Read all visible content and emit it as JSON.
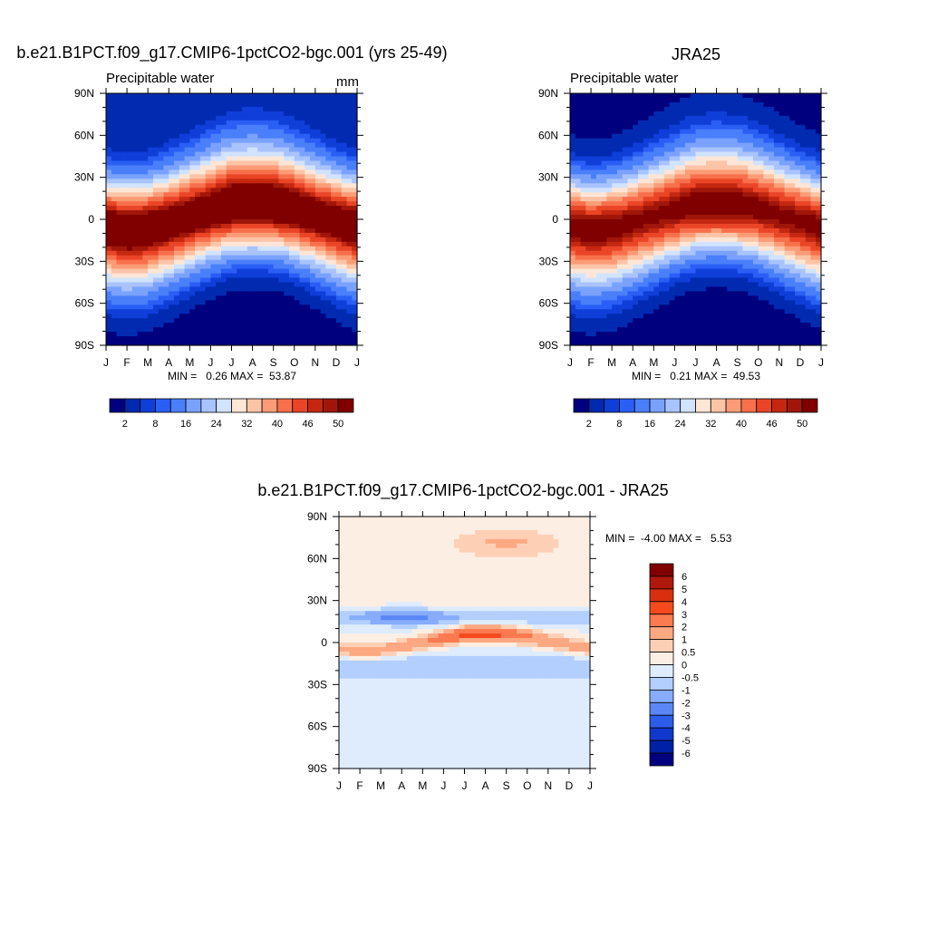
{
  "chart_data": [
    {
      "id": "model",
      "type": "heatmap",
      "title": "b.e21.B1PCT.f09_g17.CMIP6-1pctCO2-bgc.001 (yrs 25-49)",
      "subtitle_left": "Precipitable water",
      "subtitle_right": "mm",
      "x_tick_labels": [
        "J",
        "F",
        "M",
        "A",
        "M",
        "J",
        "J",
        "A",
        "S",
        "O",
        "N",
        "D",
        "J"
      ],
      "y_tick_labels": [
        "90S",
        "60S",
        "30S",
        "0",
        "30N",
        "60N",
        "90N"
      ],
      "y_range": [
        -90,
        90
      ],
      "stats_text": "MIN =   0.26 MAX =  53.87",
      "min": 0.26,
      "max": 53.87,
      "field": {
        "polar_north": 2,
        "polar_south": 1,
        "tropical_peak": 53,
        "itcz_lat": [
          -3,
          -5,
          -4,
          -1,
          2,
          5,
          8,
          8,
          8,
          6,
          3,
          0,
          -3
        ]
      },
      "colorbar": {
        "orientation": "horizontal",
        "levels": [
          2,
          4,
          6,
          8,
          12,
          16,
          20,
          24,
          28,
          32,
          36,
          40,
          44,
          46,
          48,
          50
        ],
        "labels": [
          "2",
          "8",
          "16",
          "24",
          "32",
          "40",
          "46",
          "50"
        ],
        "colors": [
          "#00007f",
          "#002bb0",
          "#0f3ed8",
          "#2a5ef5",
          "#4a7ffa",
          "#7aa2fd",
          "#a8c3fe",
          "#d2e3fe",
          "#fde6d6",
          "#fcc4a7",
          "#fb9c76",
          "#f7704b",
          "#ea4526",
          "#c42810",
          "#a0160a",
          "#800000"
        ]
      }
    },
    {
      "id": "obs",
      "type": "heatmap",
      "title": "JRA25",
      "subtitle_left": "Precipitable water",
      "x_tick_labels": [
        "J",
        "F",
        "M",
        "A",
        "M",
        "J",
        "J",
        "A",
        "S",
        "O",
        "N",
        "D",
        "J"
      ],
      "y_tick_labels": [
        "90S",
        "60S",
        "30S",
        "0",
        "30N",
        "60N",
        "90N"
      ],
      "y_range": [
        -90,
        90
      ],
      "stats_text": "MIN =   0.21 MAX =  49.53",
      "min": 0.21,
      "max": 49.53,
      "field": {
        "polar_north": 1.5,
        "polar_south": 1,
        "tropical_peak": 49,
        "itcz_lat": [
          -3,
          -5,
          -4,
          -1,
          2,
          5,
          8,
          8,
          8,
          6,
          3,
          0,
          -3
        ]
      },
      "colorbar": {
        "orientation": "horizontal",
        "levels": [
          2,
          4,
          6,
          8,
          12,
          16,
          20,
          24,
          28,
          32,
          36,
          40,
          44,
          46,
          48,
          50
        ],
        "labels": [
          "2",
          "8",
          "16",
          "24",
          "32",
          "40",
          "46",
          "50"
        ],
        "colors": [
          "#00007f",
          "#002bb0",
          "#0f3ed8",
          "#2a5ef5",
          "#4a7ffa",
          "#7aa2fd",
          "#a8c3fe",
          "#d2e3fe",
          "#fde6d6",
          "#fcc4a7",
          "#fb9c76",
          "#f7704b",
          "#ea4526",
          "#c42810",
          "#a0160a",
          "#800000"
        ]
      }
    },
    {
      "id": "diff",
      "type": "heatmap",
      "title": "b.e21.B1PCT.f09_g17.CMIP6-1pctCO2-bgc.001 - JRA25",
      "x_tick_labels": [
        "J",
        "F",
        "M",
        "A",
        "M",
        "J",
        "J",
        "A",
        "S",
        "O",
        "N",
        "D",
        "J"
      ],
      "y_tick_labels": [
        "90S",
        "60S",
        "30S",
        "0",
        "30N",
        "60N",
        "90N"
      ],
      "y_range": [
        -90,
        90
      ],
      "stats_text": "MIN =  -4.00 MAX =   5.53",
      "min": -4.0,
      "max": 5.53,
      "colorbar": {
        "orientation": "vertical",
        "labels": [
          "6",
          "5",
          "4",
          "3",
          "2",
          "1",
          "0.5",
          "0",
          "-0.5",
          "-1",
          "-2",
          "-3",
          "-4",
          "-5",
          "-6"
        ],
        "colors": [
          "#800000",
          "#b0180b",
          "#d8300f",
          "#f54a1e",
          "#fb7a50",
          "#fca982",
          "#fdd0b6",
          "#fdeee4",
          "#deecfe",
          "#b2cffe",
          "#86acfb",
          "#5a87f5",
          "#2c5cea",
          "#1038cc",
          "#0020a5",
          "#00007f"
        ]
      }
    }
  ]
}
